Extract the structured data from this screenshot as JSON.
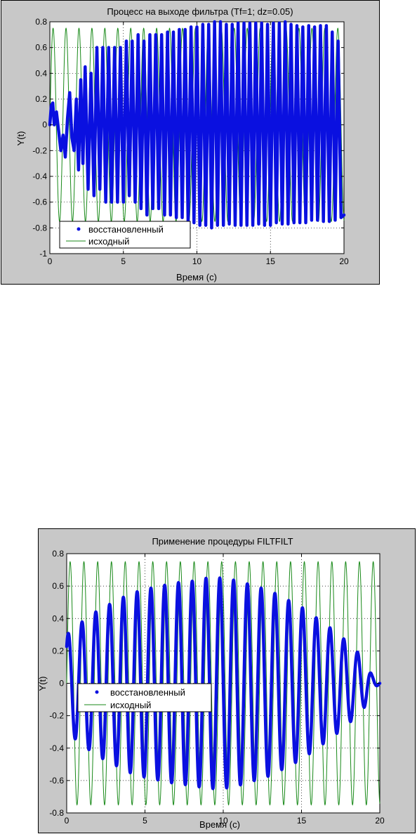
{
  "colors": {
    "restored": "#0a10e0",
    "original": "#1a8a1a",
    "figure_bg": "#c8c8c8",
    "axes_bg": "#ffffff"
  },
  "chart_data": [
    {
      "type": "line",
      "title": "Процесс на выходе фильтра (Tf=1; dz=0.05)",
      "xlabel": "Время (с)",
      "ylabel": "Y(t)",
      "xlim": [
        0,
        20
      ],
      "ylim": [
        -1,
        0.8
      ],
      "xticks": [
        0,
        5,
        10,
        15,
        20
      ],
      "yticks": [
        -1,
        -0.8,
        -0.6,
        -0.4,
        -0.2,
        0,
        0.2,
        0.4,
        0.6,
        0.8
      ],
      "grid": "dotted",
      "legend_position": "bottom-left",
      "series": [
        {
          "name": "восстановленный",
          "style": "thick-dots",
          "x": [
            0,
            0.1,
            0.2,
            0.3,
            0.45,
            0.6,
            0.75,
            0.9,
            1.05,
            1.2,
            1.35,
            1.5,
            1.65,
            1.8,
            1.95,
            2.1,
            2.25,
            2.4,
            2.6,
            2.8,
            3.0,
            3.2,
            3.4,
            3.6,
            3.8,
            4.0,
            4.2,
            4.4,
            4.6,
            4.8,
            5.0,
            5.2,
            5.4,
            5.6,
            5.8,
            6.0,
            6.2,
            6.4,
            6.6,
            6.8,
            7.0,
            7.2,
            7.4,
            7.6,
            7.8,
            8.0,
            8.2,
            8.4,
            8.6,
            8.8,
            9.0,
            9.2,
            9.4,
            9.6,
            9.8,
            10.0,
            10.2,
            10.4,
            10.6,
            10.8,
            11.0,
            11.2,
            11.4,
            11.6,
            11.8,
            12.0,
            12.2,
            12.4,
            12.6,
            12.8,
            13.0,
            13.2,
            13.4,
            13.6,
            13.8,
            14.0,
            14.2,
            14.4,
            14.6,
            14.8,
            15.0,
            15.2,
            15.4,
            15.6,
            15.8,
            16.0,
            16.2,
            16.4,
            16.6,
            16.8,
            17.0,
            17.2,
            17.4,
            17.6,
            17.8,
            18.0,
            18.2,
            18.4,
            18.6,
            18.8,
            19.0,
            19.2,
            19.4,
            19.6,
            19.8,
            20.0
          ],
          "y": [
            0,
            0.15,
            0.17,
            0.0,
            0.1,
            -0.05,
            -0.2,
            -0.08,
            -0.25,
            0.05,
            0.25,
            -0.1,
            -0.2,
            0.2,
            -0.35,
            0.35,
            -0.3,
            0.45,
            -0.5,
            0.4,
            -0.55,
            0.6,
            -0.5,
            0.6,
            -0.6,
            0.6,
            -0.6,
            0.6,
            -0.6,
            0.6,
            -0.6,
            0.65,
            -0.55,
            0.65,
            -0.6,
            0.7,
            -0.65,
            0.65,
            -0.7,
            0.7,
            -0.65,
            0.7,
            -0.65,
            0.7,
            -0.7,
            0.72,
            -0.7,
            0.72,
            -0.72,
            0.74,
            -0.72,
            0.74,
            -0.75,
            0.76,
            -0.76,
            0.76,
            -0.78,
            0.78,
            -0.78,
            0.78,
            -0.8,
            0.8,
            -0.78,
            0.8,
            -0.78,
            0.78,
            -0.77,
            0.78,
            -0.78,
            0.79,
            -0.78,
            0.79,
            -0.78,
            0.79,
            -0.78,
            0.79,
            -0.77,
            0.79,
            -0.78,
            0.78,
            -0.78,
            0.79,
            -0.76,
            0.79,
            -0.77,
            0.8,
            -0.77,
            0.78,
            -0.76,
            0.77,
            -0.76,
            0.76,
            -0.76,
            0.77,
            -0.74,
            0.76,
            -0.74,
            0.77,
            -0.75,
            0.77,
            -0.75,
            0.72,
            -0.74,
            0.65,
            -0.72,
            -0.7
          ]
        },
        {
          "name": "исходный",
          "style": "thin-line",
          "function": "sine",
          "amplitude": 0.75,
          "period": 0.88
        }
      ]
    },
    {
      "type": "line",
      "title": "Применение процедуры FILTFILT",
      "xlabel": "Время (с)",
      "ylabel": "Y(t)",
      "xlim": [
        0,
        20
      ],
      "ylim": [
        -0.8,
        0.8
      ],
      "xticks": [
        0,
        5,
        10,
        15,
        20
      ],
      "yticks": [
        -0.8,
        -0.6,
        -0.4,
        -0.2,
        0,
        0.2,
        0.4,
        0.6,
        0.8
      ],
      "grid": "dotted",
      "legend_position": "center-left",
      "series": [
        {
          "name": "восстановленный",
          "style": "thick-dots",
          "envelope_t": [
            0,
            1,
            2,
            3,
            4,
            5,
            6,
            7,
            8,
            9,
            10,
            11,
            12,
            13,
            14,
            15,
            16,
            17,
            18,
            19,
            19.5,
            20
          ],
          "envelope_a": [
            0.3,
            0.38,
            0.45,
            0.5,
            0.55,
            0.58,
            0.6,
            0.62,
            0.63,
            0.65,
            0.65,
            0.63,
            0.6,
            0.57,
            0.52,
            0.47,
            0.4,
            0.33,
            0.25,
            0.15,
            0.05,
            0.0
          ],
          "period": 0.88
        },
        {
          "name": "исходный",
          "style": "thin-line",
          "function": "sine",
          "amplitude": 0.75,
          "period": 0.88
        }
      ]
    }
  ]
}
